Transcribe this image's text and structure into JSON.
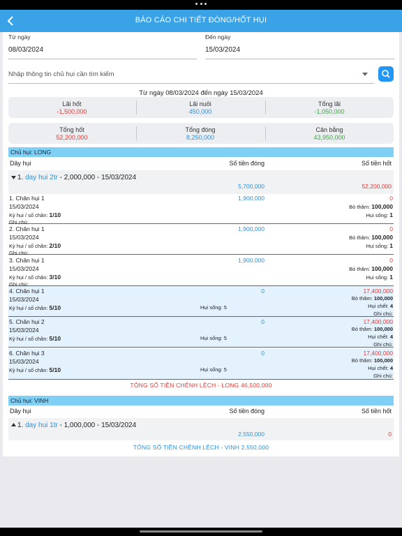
{
  "header": {
    "title": "BÁO CÁO CHI TIẾT ĐÓNG/HỐT HỤI"
  },
  "filters": {
    "from_label": "Từ ngày",
    "from_value": "08/03/2024",
    "to_label": "Đến ngày",
    "to_value": "15/03/2024",
    "search_placeholder": "Nhập thông tin chủ hụi cần tìm kiếm"
  },
  "range_text": "Từ ngày 08/03/2024 đến ngày 15/03/2024",
  "summary1": [
    {
      "label": "Lãi hốt",
      "value": "-1,500,000",
      "color": "#e53935"
    },
    {
      "label": "Lãi nuôi",
      "value": "450,000",
      "color": "#2f8fd8"
    },
    {
      "label": "Tổng lãi",
      "value": "-1,050,000",
      "color": "#43a047"
    }
  ],
  "summary2": [
    {
      "label": "Tổng hốt",
      "value": "52,200,000",
      "color": "#e53935"
    },
    {
      "label": "Tổng đóng",
      "value": "8,250,000",
      "color": "#2f8fd8"
    },
    {
      "label": "Cân bằng",
      "value": "43,950,000",
      "color": "#43a047"
    }
  ],
  "columns": {
    "group": "Dây hụi",
    "paid": "Số tiền đóng",
    "collected": "Số tiền hốt"
  },
  "owners": [
    {
      "prefix": "Chủ hụi: ",
      "name": "LONG",
      "group_index": "1. ",
      "group_name": "day hui 2tr",
      "group_rest": " - 2,000,000 - 15/03/2024",
      "group_paid": "5,700,000",
      "group_collected": "52,200,000",
      "rows": [
        {
          "title": "1. Chân hụi 1",
          "date": "15/03/2024",
          "ky_label": "Kỳ hụi / số chân: ",
          "ky": "1/10",
          "note": "Ghi chú:",
          "paid": "1,900,000",
          "collected": "0",
          "bid_label": "Bỏ thăm: ",
          "bid": "100,000",
          "status_label": "Hụi sống: ",
          "status": "1"
        },
        {
          "title": "2. Chân hụi 1",
          "date": "15/03/2024",
          "ky_label": "Kỳ hụi / số chân: ",
          "ky": "2/10",
          "note": "Ghi chú:",
          "paid": "1,900,000",
          "collected": "0",
          "bid_label": "Bỏ thăm: ",
          "bid": "100,000",
          "status_label": "Hụi sống: ",
          "status": "1"
        },
        {
          "title": "3. Chân hụi 1",
          "date": "15/03/2024",
          "ky_label": "Kỳ hụi / số chân: ",
          "ky": "3/10",
          "note": "Ghi chú:",
          "paid": "1,900,000",
          "collected": "0",
          "bid_label": "Bỏ thăm: ",
          "bid": "100,000",
          "status_label": "Hụi sống: ",
          "status": "1"
        },
        {
          "title": "4. Chân hụi 1",
          "date": "15/03/2024",
          "ky_label": "Kỳ hụi / số chân: ",
          "ky": "5/10",
          "mid": "Hụi sống: 5",
          "paid": "0",
          "collected": "17,400,000",
          "bid_label": "Bỏ thăm: ",
          "bid": "100,000",
          "status_label": "Hụi chết: ",
          "status": "4",
          "note": "Ghi chú:"
        },
        {
          "title": "5. Chân hụi 2",
          "date": "15/03/2024",
          "ky_label": "Kỳ hụi / số chân: ",
          "ky": "5/10",
          "mid": "Hụi sống: 5",
          "paid": "0",
          "collected": "17,400,000",
          "bid_label": "Bỏ thăm: ",
          "bid": "100,000",
          "status_label": "Hụi chết: ",
          "status": "4",
          "note": "Ghi chú:"
        },
        {
          "title": "6. Chân hụi 3",
          "date": "15/03/2024",
          "ky_label": "Kỳ hụi / số chân: ",
          "ky": "5/10",
          "mid": "Hụi sống: 5",
          "paid": "0",
          "collected": "17,400,000",
          "bid_label": "Bỏ thăm: ",
          "bid": "100,000",
          "status_label": "Hụi chết: ",
          "status": "4",
          "note": "Ghi chú:"
        }
      ],
      "total": "TỔNG SỐ TIỀN CHÊNH LỆCH - LONG 46,500,000"
    },
    {
      "prefix": "Chủ hụi: ",
      "name": "VINH",
      "group_index": "1. ",
      "group_name": "day hui 1tr",
      "group_rest": " - 1,000,000 - 15/03/2024",
      "group_paid": "2,550,000",
      "group_collected": "0",
      "total": "TỔNG SỐ TIỀN CHÊNH LỆCH - VINH 2,550,000"
    }
  ],
  "colors": {
    "nav": "#3aa3e8",
    "accent": "#2196f3",
    "red": "#e53935",
    "blue": "#2f8fd8",
    "green": "#43a047",
    "owner_bar": "#7fd0f4",
    "row_shade": "#e4f2fd"
  },
  "icons": [
    "back-chevron-icon",
    "dropdown-caret-icon",
    "search-icon",
    "expand-caret-icon",
    "collapse-caret-icon"
  ]
}
